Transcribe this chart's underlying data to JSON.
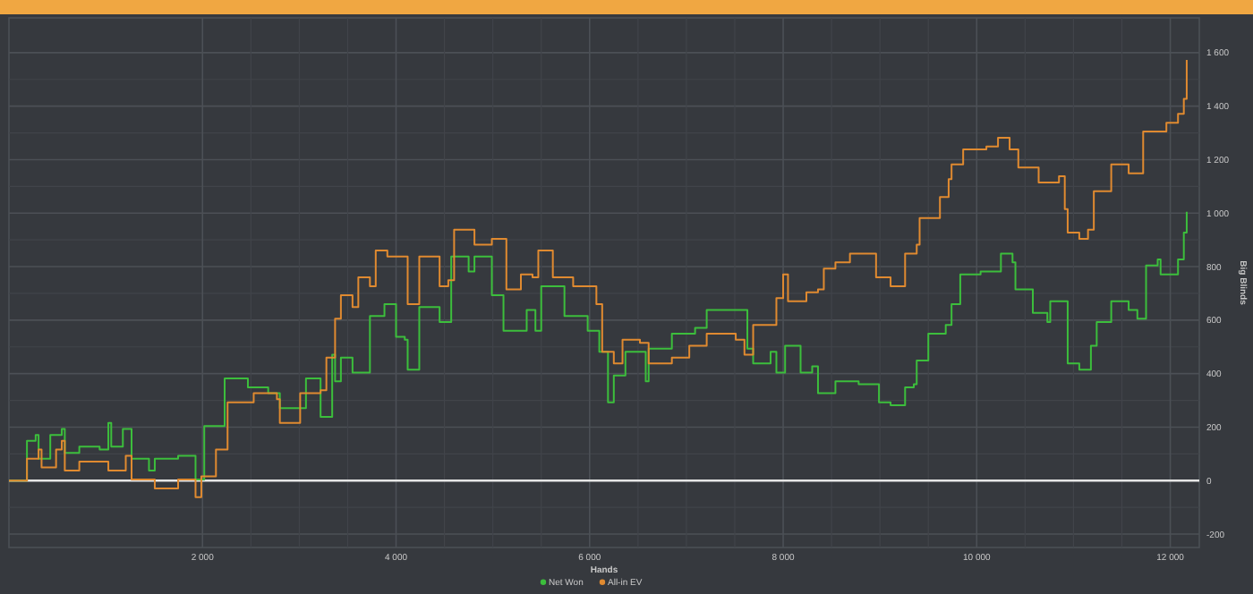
{
  "chart_data": {
    "type": "step",
    "xlabel": "Hands",
    "ylabel": "Big Blinds",
    "xlim": [
      0,
      12300
    ],
    "ylim": [
      -250,
      1730
    ],
    "xticks": [
      {
        "value": 2000,
        "label": "2 000"
      },
      {
        "value": 4000,
        "label": "4 000"
      },
      {
        "value": 6000,
        "label": "6 000"
      },
      {
        "value": 8000,
        "label": "8 000"
      },
      {
        "value": 10000,
        "label": "10 000"
      },
      {
        "value": 12000,
        "label": "12 000"
      }
    ],
    "yticks": [
      -200,
      0,
      200,
      400,
      600,
      800,
      {
        "value": 1000,
        "label": "1 000"
      },
      {
        "value": 1200,
        "label": "1 200"
      },
      {
        "value": 1400,
        "label": "1 400"
      },
      {
        "value": 1600,
        "label": "1 600"
      }
    ],
    "grid": true,
    "legend": "bottom",
    "marker": "none",
    "line_style": "solid",
    "ref_lines": [
      {
        "axis": "y",
        "value": 0,
        "color": "#e6e6e6"
      }
    ],
    "series": [
      {
        "name": "Net Won",
        "color": "#3cbe3c",
        "x": [
          0,
          186,
          276,
          306,
          427,
          546,
          577,
          727,
          937,
          1027,
          1057,
          1177,
          1267,
          1447,
          1507,
          1748,
          1928,
          2018,
          2229,
          2469,
          2679,
          2799,
          3069,
          3220,
          3340,
          3370,
          3430,
          3550,
          3730,
          3880,
          4000,
          4090,
          4120,
          4240,
          4450,
          4570,
          4750,
          4810,
          4990,
          5110,
          5350,
          5440,
          5500,
          5740,
          5980,
          6100,
          6190,
          6250,
          6370,
          6580,
          6610,
          6850,
          7090,
          7210,
          7450,
          7630,
          7690,
          7870,
          7930,
          8020,
          8180,
          8300,
          8360,
          8540,
          8780,
          8990,
          9110,
          9260,
          9350,
          9380,
          9500,
          9680,
          9740,
          9830,
          10040,
          10190,
          10250,
          10370,
          10400,
          10580,
          10730,
          10760,
          10850,
          10940,
          11060,
          11180,
          11240,
          11390,
          11570,
          11660,
          11750,
          11870,
          11900,
          12080,
          12140,
          12170
        ],
        "values": [
          0,
          149,
          171,
          82,
          171,
          193,
          104,
          127,
          116,
          216,
          127,
          193,
          82,
          38,
          82,
          93,
          4,
          204,
          382,
          349,
          327,
          271,
          382,
          238,
          471,
          371,
          460,
          404,
          615,
          660,
          538,
          527,
          415,
          649,
          593,
          838,
          782,
          838,
          693,
          560,
          638,
          560,
          727,
          615,
          560,
          482,
          293,
          393,
          482,
          371,
          493,
          549,
          571,
          638,
          638,
          493,
          438,
          482,
          404,
          504,
          404,
          427,
          327,
          371,
          360,
          293,
          282,
          349,
          360,
          449,
          549,
          582,
          660,
          771,
          782,
          782,
          849,
          816,
          715,
          627,
          593,
          671,
          671,
          438,
          415,
          504,
          593,
          671,
          638,
          605,
          804,
          827,
          771,
          827,
          927,
          1005
        ]
      },
      {
        "name": "All-in EV",
        "color": "#e08a30",
        "x": [
          0,
          186,
          306,
          337,
          487,
          546,
          577,
          727,
          1027,
          1207,
          1267,
          1507,
          1748,
          1928,
          1988,
          2139,
          2259,
          2529,
          2769,
          2799,
          2889,
          3009,
          3220,
          3280,
          3370,
          3430,
          3550,
          3610,
          3730,
          3790,
          3910,
          4120,
          4240,
          4450,
          4540,
          4600,
          4810,
          4990,
          5140,
          5290,
          5410,
          5470,
          5560,
          5620,
          5830,
          6070,
          6130,
          6250,
          6340,
          6520,
          6610,
          6850,
          7030,
          7210,
          7510,
          7600,
          7690,
          7930,
          8000,
          8050,
          8240,
          8360,
          8420,
          8540,
          8690,
          8960,
          9110,
          9260,
          9380,
          9410,
          9620,
          9710,
          9740,
          9860,
          10100,
          10220,
          10340,
          10430,
          10640,
          10850,
          10910,
          10940,
          11060,
          11150,
          11210,
          11390,
          11570,
          11660,
          11720,
          11960,
          12080,
          12140,
          12170
        ],
        "values": [
          0,
          82,
          116,
          49,
          116,
          149,
          38,
          71,
          38,
          93,
          4,
          -29,
          4,
          -62,
          16,
          116,
          293,
          327,
          304,
          216,
          216,
          327,
          338,
          460,
          605,
          693,
          649,
          760,
          727,
          860,
          838,
          660,
          838,
          727,
          749,
          938,
          882,
          904,
          715,
          771,
          760,
          860,
          860,
          760,
          727,
          660,
          482,
          438,
          527,
          515,
          438,
          460,
          504,
          549,
          527,
          471,
          582,
          682,
          771,
          671,
          704,
          715,
          793,
          816,
          849,
          760,
          727,
          849,
          882,
          982,
          1060,
          1127,
          1182,
          1238,
          1249,
          1282,
          1238,
          1171,
          1115,
          1138,
          1015,
          927,
          904,
          938,
          1082,
          1182,
          1149,
          1149,
          1305,
          1338,
          1371,
          1427,
          1573
        ]
      }
    ]
  }
}
